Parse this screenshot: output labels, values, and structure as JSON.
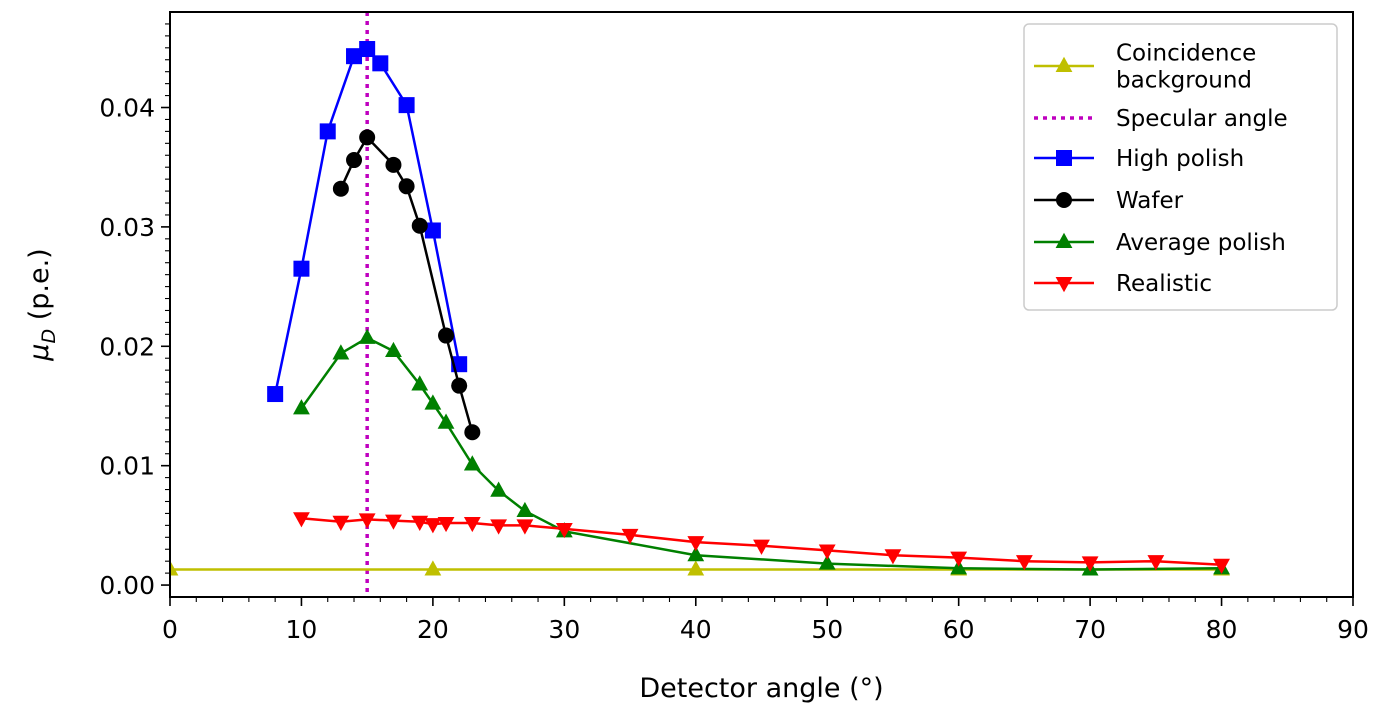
{
  "chart_data": {
    "type": "line",
    "xlabel": "Detector angle (°)",
    "ylabel_main": "μ",
    "ylabel_sub": "D",
    "ylabel_rest": " (p.e.)",
    "xlim": [
      0,
      90
    ],
    "ylim": [
      -0.001,
      0.048
    ],
    "xticks": [
      0,
      10,
      20,
      30,
      40,
      50,
      60,
      70,
      80,
      90
    ],
    "yticks": [
      0.0,
      0.01,
      0.02,
      0.03,
      0.04
    ],
    "ytick_labels": [
      "0.00",
      "0.01",
      "0.02",
      "0.03",
      "0.04"
    ],
    "grid": false,
    "legend_position": "top-right",
    "specular_angle": 15,
    "series": [
      {
        "name": "Coincidence background",
        "legend_lines": [
          "Coincidence",
          "background"
        ],
        "color": "#bfbf00",
        "marker": "triangle-up",
        "x": [
          0,
          20,
          40,
          60,
          80
        ],
        "y": [
          0.0013,
          0.0013,
          0.0013,
          0.0013,
          0.0013
        ]
      },
      {
        "name": "High polish",
        "color": "#0000ff",
        "marker": "square",
        "x": [
          8,
          10,
          12,
          14,
          15,
          16,
          18,
          20,
          22
        ],
        "y": [
          0.016,
          0.0265,
          0.038,
          0.0443,
          0.0449,
          0.0437,
          0.0402,
          0.0297,
          0.0185
        ]
      },
      {
        "name": "Wafer",
        "color": "#000000",
        "marker": "circle",
        "x": [
          13,
          14,
          15,
          17,
          18,
          19,
          21,
          22,
          23
        ],
        "y": [
          0.0332,
          0.0356,
          0.0375,
          0.0352,
          0.0334,
          0.0301,
          0.0209,
          0.0167,
          0.0128
        ]
      },
      {
        "name": "Average polish",
        "color": "#008000",
        "marker": "triangle-up",
        "x": [
          10,
          13,
          15,
          17,
          19,
          20,
          21,
          23,
          25,
          27,
          30,
          40,
          50,
          60,
          70,
          80
        ],
        "y": [
          0.0148,
          0.0194,
          0.0207,
          0.0196,
          0.0168,
          0.0152,
          0.0136,
          0.0101,
          0.0079,
          0.0062,
          0.0045,
          0.0025,
          0.0018,
          0.0014,
          0.0013,
          0.0014
        ]
      },
      {
        "name": "Realistic",
        "color": "#ff0000",
        "marker": "triangle-down",
        "x": [
          10,
          13,
          15,
          17,
          19,
          20,
          21,
          23,
          25,
          27,
          30,
          35,
          40,
          45,
          50,
          55,
          60,
          65,
          70,
          75,
          80
        ],
        "y": [
          0.0056,
          0.0053,
          0.0055,
          0.0054,
          0.0053,
          0.0051,
          0.0052,
          0.0052,
          0.005,
          0.005,
          0.0047,
          0.0042,
          0.0036,
          0.0033,
          0.0029,
          0.0025,
          0.0023,
          0.002,
          0.0019,
          0.002,
          0.0017
        ]
      }
    ],
    "legend": [
      {
        "series": "Coincidence background",
        "lines": [
          "Coincidence",
          "background"
        ],
        "color": "#bfbf00",
        "marker": "triangle-up",
        "style": "solid"
      },
      {
        "series": "Specular angle",
        "lines": [
          "Specular angle"
        ],
        "color": "#bf00bf",
        "marker": "none",
        "style": "dotted"
      },
      {
        "series": "High polish",
        "lines": [
          "High polish"
        ],
        "color": "#0000ff",
        "marker": "square",
        "style": "solid"
      },
      {
        "series": "Wafer",
        "lines": [
          "Wafer"
        ],
        "color": "#000000",
        "marker": "circle",
        "style": "solid"
      },
      {
        "series": "Average polish",
        "lines": [
          "Average polish"
        ],
        "color": "#008000",
        "marker": "triangle-up",
        "style": "solid"
      },
      {
        "series": "Realistic",
        "lines": [
          "Realistic"
        ],
        "color": "#ff0000",
        "marker": "triangle-down",
        "style": "solid"
      }
    ]
  }
}
